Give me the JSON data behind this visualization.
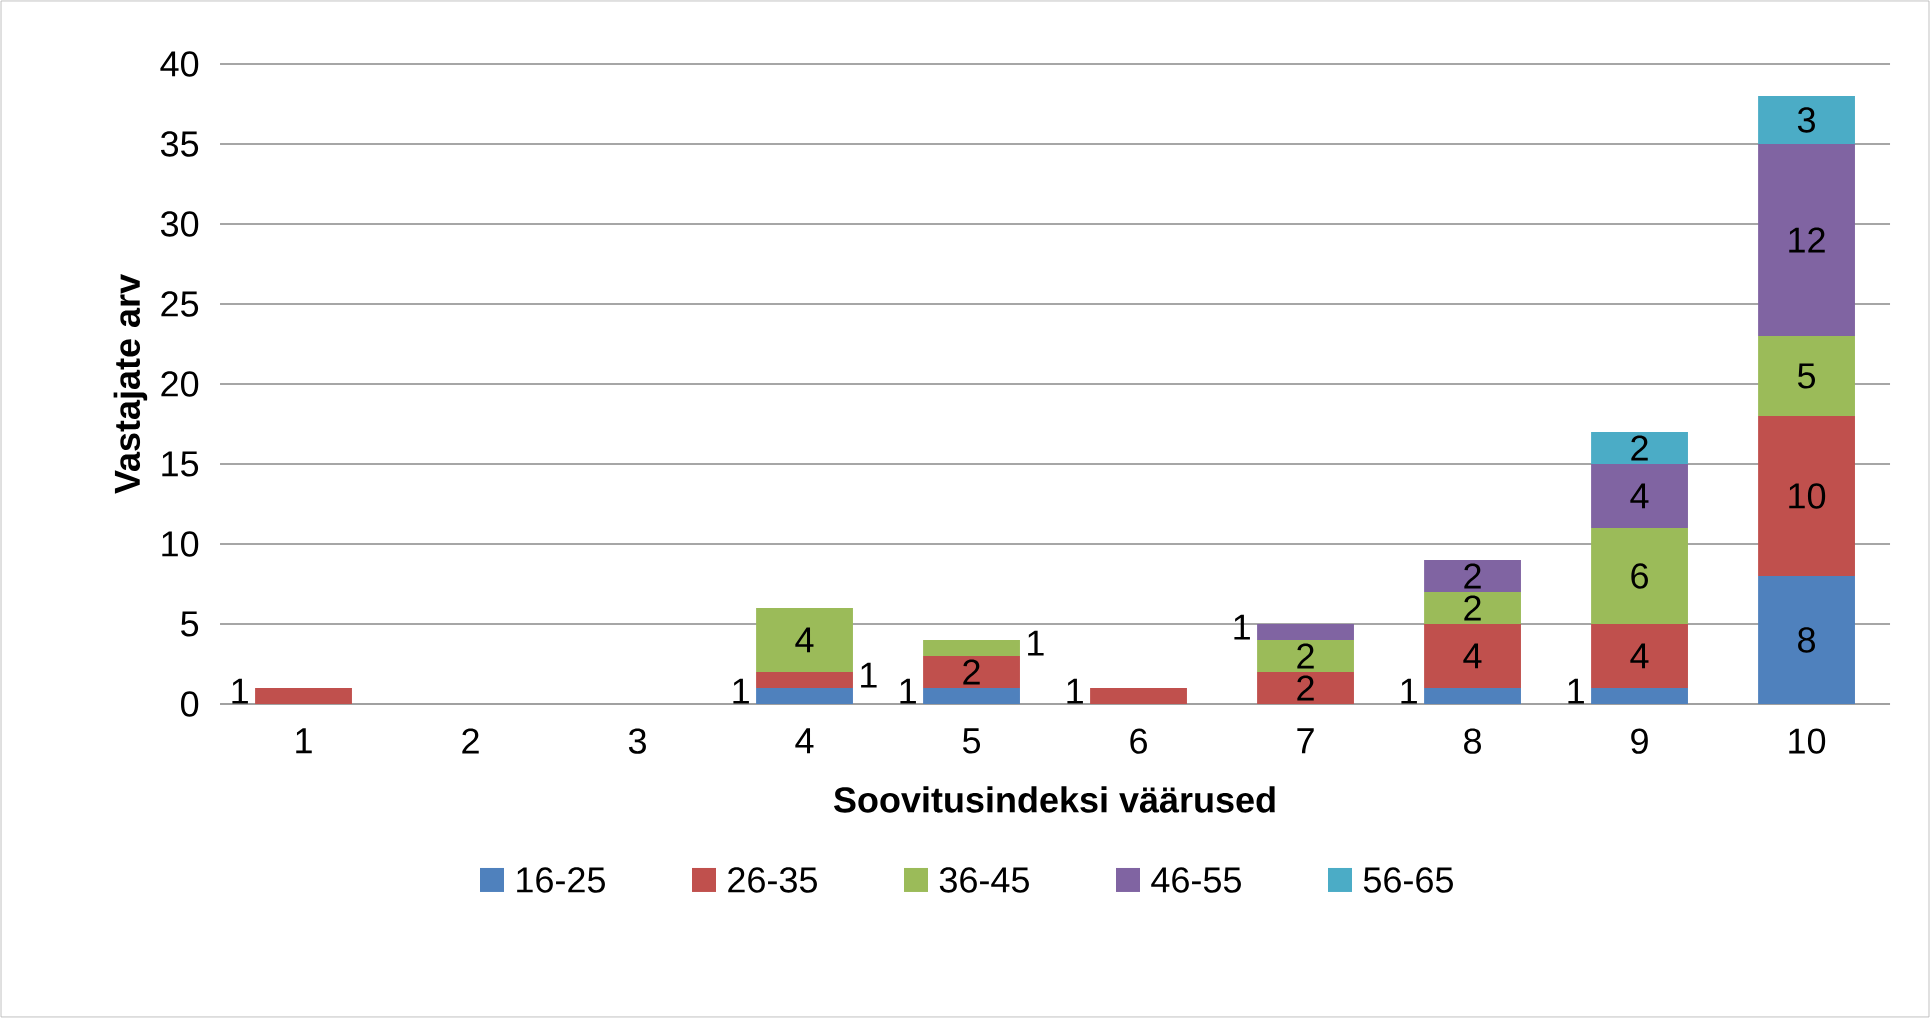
{
  "chart_data": {
    "type": "bar",
    "stacked": true,
    "xlabel": "Soovitusindeksi väärused",
    "ylabel": "Vastajate arv",
    "categories": [
      "1",
      "2",
      "3",
      "4",
      "5",
      "6",
      "7",
      "8",
      "9",
      "10"
    ],
    "series": [
      {
        "name": "16-25",
        "color": "#4f81bd",
        "values": [
          null,
          null,
          null,
          1,
          1,
          null,
          null,
          1,
          1,
          8
        ]
      },
      {
        "name": "26-35",
        "color": "#c0504d",
        "values": [
          1,
          null,
          null,
          1,
          2,
          1,
          2,
          4,
          4,
          10
        ]
      },
      {
        "name": "36-45",
        "color": "#9bbb59",
        "values": [
          null,
          null,
          null,
          4,
          1,
          null,
          2,
          2,
          6,
          5
        ]
      },
      {
        "name": "46-55",
        "color": "#8064a2",
        "values": [
          null,
          null,
          null,
          null,
          null,
          null,
          1,
          2,
          4,
          12
        ]
      },
      {
        "name": "56-65",
        "color": "#4bacc6",
        "values": [
          null,
          null,
          null,
          null,
          null,
          null,
          null,
          null,
          2,
          3
        ]
      }
    ],
    "ylim": [
      0,
      40
    ],
    "yticks": [
      0,
      5,
      10,
      15,
      20,
      25,
      30,
      35,
      40
    ],
    "grid": "y",
    "legend": "bottom",
    "data_labels": true
  }
}
